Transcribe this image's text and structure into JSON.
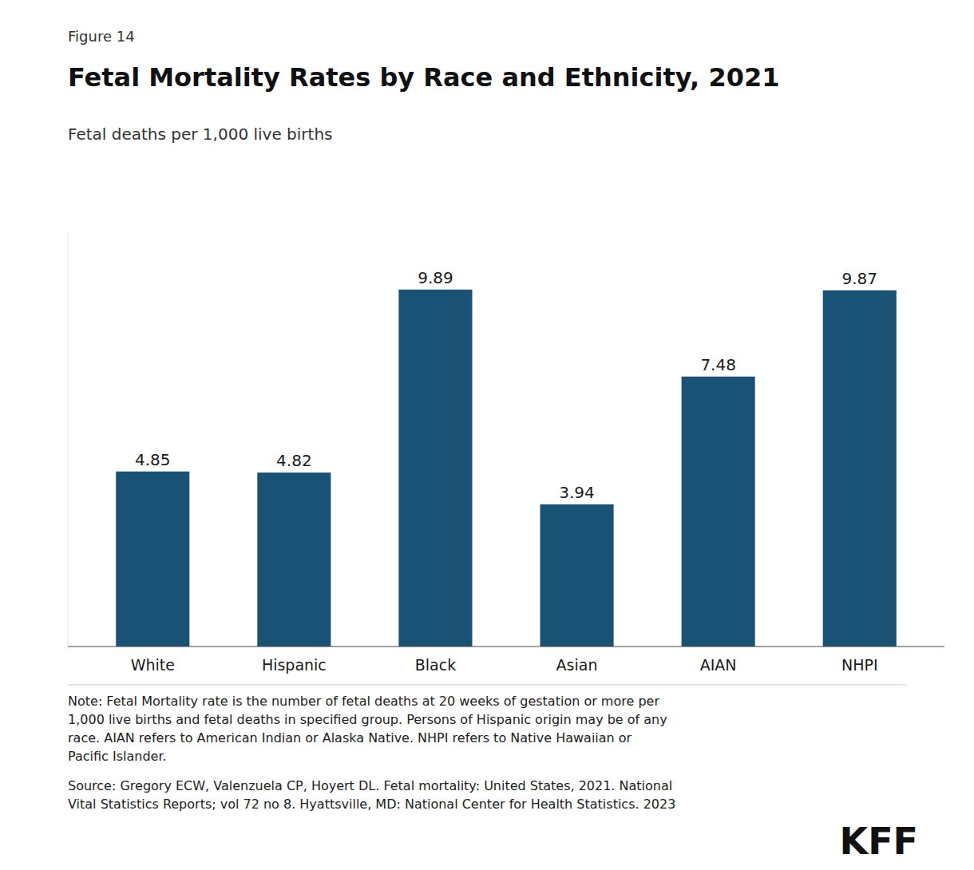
{
  "chart_data": {
    "type": "bar",
    "figure_label": "Figure 14",
    "title": "Fetal Mortality Rates by Race and Ethnicity, 2021",
    "subtitle": "Fetal deaths per 1,000 live births",
    "categories": [
      "White",
      "Hispanic",
      "Black",
      "Asian",
      "AIAN",
      "NHPI"
    ],
    "values": [
      4.85,
      4.82,
      9.89,
      3.94,
      7.48,
      9.87
    ],
    "color": "#1a5276",
    "ylim": [
      0,
      11.5
    ],
    "grid": false,
    "data_labels": true,
    "tick_labels": "x",
    "note": "Note: Fetal Mortality rate is the number of fetal deaths at 20 weeks of gestation or more per\n1,000 live births and fetal deaths in specified group. Persons of Hispanic origin may be of any\nrace. AIAN refers to American Indian or Alaska Native. NHPI refers to Native Hawaiian or\nPacific Islander.",
    "source": "Source: Gregory ECW, Valenzuela CP, Hoyert DL. Fetal mortality: United States, 2021. National\nVital Statistics Reports; vol 72 no 8. Hyattsville, MD: National Center for Health Statistics. 2023",
    "credit": "KFF"
  }
}
